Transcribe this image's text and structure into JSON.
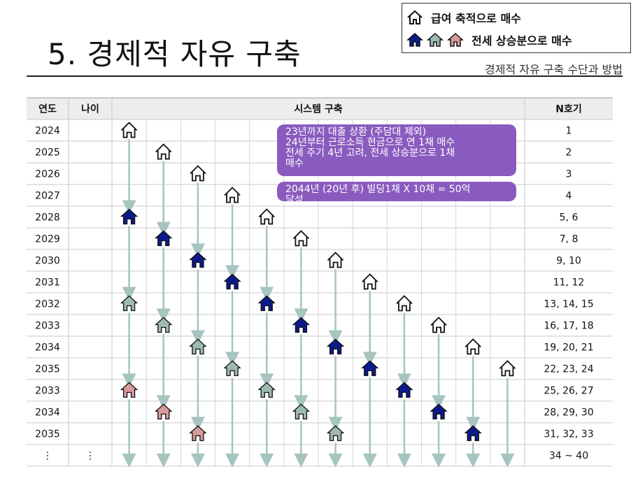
{
  "header": {
    "title": "5. 경제적 자유 구축",
    "subtitle": "경제적 자유 구축 수단과 방법"
  },
  "legend": {
    "salary_label": "급여 축적으로 매수",
    "jeonse_label": "전세 상승분으로 매수"
  },
  "table": {
    "headers": {
      "year": "연도",
      "age": "나이",
      "system": "시스템 구축",
      "count": "N호기"
    },
    "rows": [
      {
        "year": "2024",
        "age": "",
        "count": "1"
      },
      {
        "year": "2025",
        "age": "",
        "count": "2"
      },
      {
        "year": "2026",
        "age": "",
        "count": "3"
      },
      {
        "year": "2027",
        "age": "",
        "count": "4"
      },
      {
        "year": "2028",
        "age": "",
        "count": "5, 6"
      },
      {
        "year": "2029",
        "age": "",
        "count": "7, 8"
      },
      {
        "year": "2030",
        "age": "",
        "count": "9, 10"
      },
      {
        "year": "2031",
        "age": "",
        "count": "11, 12"
      },
      {
        "year": "2032",
        "age": "",
        "count": "13, 14, 15"
      },
      {
        "year": "2033",
        "age": "",
        "count": "16, 17, 18"
      },
      {
        "year": "2034",
        "age": "",
        "count": "19, 20, 21"
      },
      {
        "year": "2035",
        "age": "",
        "count": "22, 23, 24"
      },
      {
        "year": "2033",
        "age": "",
        "count": "25, 26, 27"
      },
      {
        "year": "2034",
        "age": "",
        "count": "28, 29, 30"
      },
      {
        "year": "2035",
        "age": "",
        "count": "31, 32, 33"
      },
      {
        "year": "⋮",
        "age": "⋮",
        "count": "34 ~ 40"
      }
    ]
  },
  "houses": [
    {
      "col": 0,
      "row": 0,
      "type": "outline"
    },
    {
      "col": 1,
      "row": 1,
      "type": "outline"
    },
    {
      "col": 2,
      "row": 2,
      "type": "outline"
    },
    {
      "col": 3,
      "row": 3,
      "type": "outline"
    },
    {
      "col": 4,
      "row": 4,
      "type": "outline"
    },
    {
      "col": 0,
      "row": 4,
      "type": "navy"
    },
    {
      "col": 5,
      "row": 5,
      "type": "outline"
    },
    {
      "col": 1,
      "row": 5,
      "type": "navy"
    },
    {
      "col": 6,
      "row": 6,
      "type": "outline"
    },
    {
      "col": 2,
      "row": 6,
      "type": "navy"
    },
    {
      "col": 7,
      "row": 7,
      "type": "outline"
    },
    {
      "col": 3,
      "row": 7,
      "type": "navy"
    },
    {
      "col": 8,
      "row": 8,
      "type": "outline"
    },
    {
      "col": 0,
      "row": 8,
      "type": "gray"
    },
    {
      "col": 4,
      "row": 8,
      "type": "navy"
    },
    {
      "col": 9,
      "row": 9,
      "type": "outline"
    },
    {
      "col": 1,
      "row": 9,
      "type": "gray"
    },
    {
      "col": 5,
      "row": 9,
      "type": "navy"
    },
    {
      "col": 10,
      "row": 10,
      "type": "outline"
    },
    {
      "col": 2,
      "row": 10,
      "type": "gray"
    },
    {
      "col": 6,
      "row": 10,
      "type": "navy"
    },
    {
      "col": 11,
      "row": 11,
      "type": "outline"
    },
    {
      "col": 3,
      "row": 11,
      "type": "gray"
    },
    {
      "col": 7,
      "row": 11,
      "type": "navy"
    },
    {
      "col": 0,
      "row": 12,
      "type": "pink"
    },
    {
      "col": 4,
      "row": 12,
      "type": "gray"
    },
    {
      "col": 8,
      "row": 12,
      "type": "navy"
    },
    {
      "col": 1,
      "row": 13,
      "type": "pink"
    },
    {
      "col": 5,
      "row": 13,
      "type": "gray"
    },
    {
      "col": 9,
      "row": 13,
      "type": "navy"
    },
    {
      "col": 2,
      "row": 14,
      "type": "pink"
    },
    {
      "col": 6,
      "row": 14,
      "type": "gray"
    },
    {
      "col": 10,
      "row": 14,
      "type": "navy"
    }
  ],
  "notes": {
    "box1": [
      "23년까지 대출 상환 (주담대 제외)",
      "24년부터 근로소득 현금으로 연 1채 매수",
      "전세 주기 4년 고려, 전세 상승분으로 1채",
      "매수"
    ],
    "box2": [
      "2044년 (20년  후) 빌딩1채 X 10채  = 50억",
      "달성"
    ]
  },
  "colors": {
    "navy": "#0c1a8c",
    "gray": "#9fb9b4",
    "pink": "#d99a9a",
    "arrow": "#a6c4c0",
    "bubble": "#8a5bbf"
  }
}
